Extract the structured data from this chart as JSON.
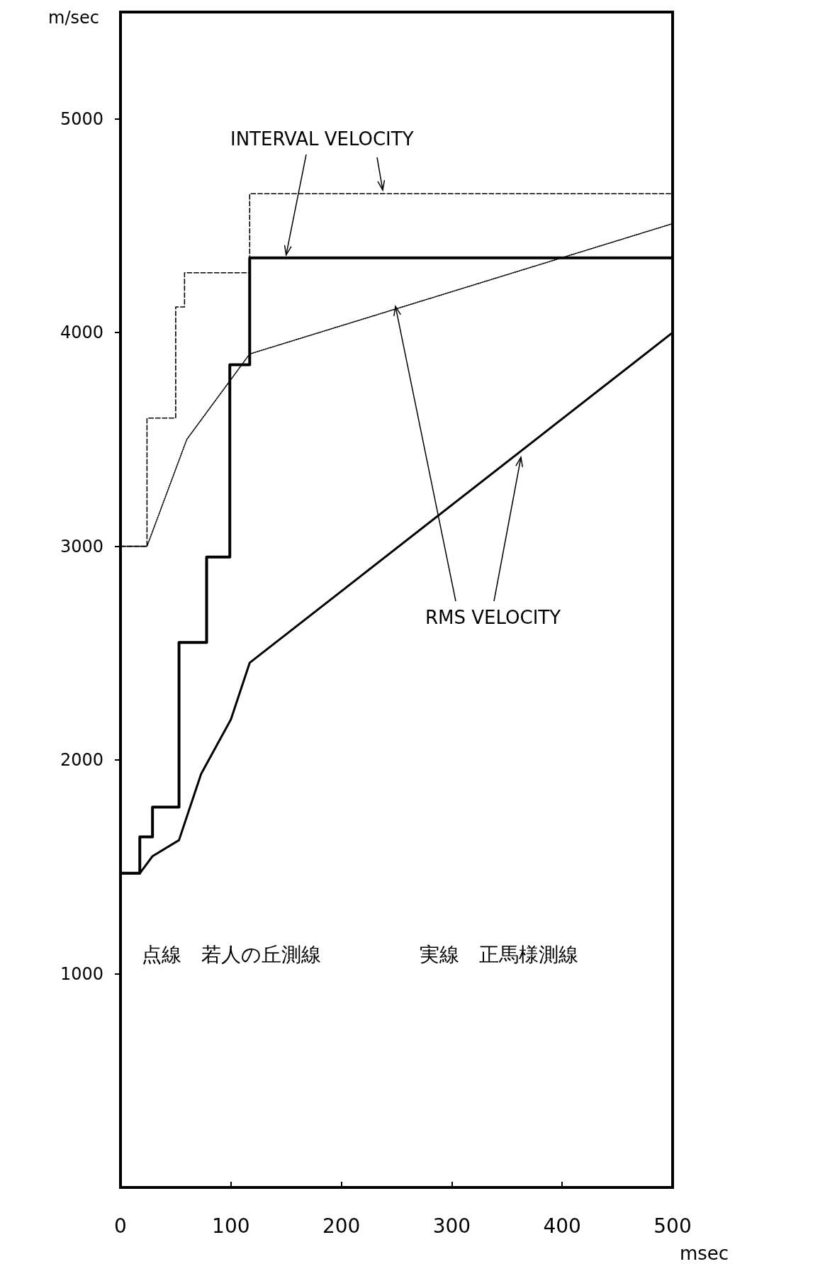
{
  "chart_data": {
    "type": "line",
    "xlabel": "msec",
    "ylabel": "m/sec",
    "xlim": [
      0,
      500
    ],
    "ylim": [
      0,
      5500
    ],
    "xticks": [
      0,
      100,
      200,
      300,
      400,
      500
    ],
    "yticks": [
      1000,
      2000,
      3000,
      4000,
      5000
    ],
    "grid": false,
    "marker": "none",
    "annotations": [
      {
        "text": "INTERVAL VELOCITY",
        "x": 150,
        "y": 4350
      },
      {
        "text": "RMS VELOCITY",
        "x": 249,
        "y": 4110
      },
      "点線　若人の丘測線",
      "実線　正馬様測線"
    ],
    "series": [
      {
        "type": "step",
        "color": "#000000",
        "line_style": "dashed",
        "x": [
          0,
          24,
          50,
          58,
          117,
          500
        ],
        "values": [
          3000,
          3600,
          4120,
          4280,
          4650,
          4650
        ]
      },
      {
        "type": "line",
        "color": "#000000",
        "line_style": "dotted",
        "x": [
          0,
          24,
          60,
          117,
          500
        ],
        "values": [
          3000,
          3000,
          3500,
          3900,
          4510
        ]
      },
      {
        "type": "step",
        "color": "#000000",
        "line_style": "solid",
        "x": [
          0,
          17.5,
          29,
          53,
          78,
          99,
          117,
          500
        ],
        "values": [
          1470,
          1640,
          1780,
          2550,
          2950,
          3850,
          4350,
          4350
        ]
      },
      {
        "type": "line",
        "color": "#000000",
        "line_style": "solid",
        "x": [
          0,
          17.5,
          29,
          53,
          73,
          100,
          117,
          500
        ],
        "values": [
          1470,
          1470,
          1550,
          1625,
          1935,
          2190,
          2455,
          4000
        ]
      }
    ]
  }
}
